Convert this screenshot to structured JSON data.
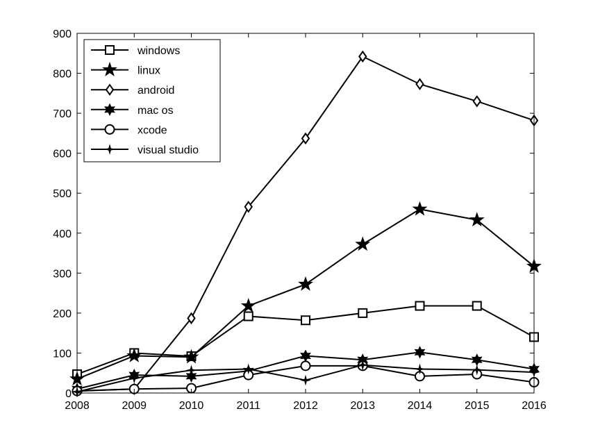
{
  "chart_data": {
    "type": "line",
    "title": "",
    "xlabel": "",
    "ylabel": "",
    "x": [
      2008,
      2009,
      2010,
      2011,
      2012,
      2013,
      2014,
      2015,
      2016
    ],
    "xlim": [
      2008,
      2016
    ],
    "ylim": [
      0,
      900
    ],
    "xticks": [
      "2008",
      "2009",
      "2010",
      "2011",
      "2012",
      "2013",
      "2014",
      "2015",
      "2016"
    ],
    "yticks": [
      "0",
      "100",
      "200",
      "300",
      "400",
      "500",
      "600",
      "700",
      "800",
      "900"
    ],
    "grid": false,
    "legend_position": "top-left",
    "series": [
      {
        "name": "windows",
        "marker": "square",
        "values": [
          47,
          100,
          92,
          192,
          182,
          200,
          218,
          218,
          140
        ]
      },
      {
        "name": "linux",
        "marker": "pentagram",
        "values": [
          35,
          93,
          90,
          218,
          272,
          372,
          460,
          433,
          317
        ]
      },
      {
        "name": "android",
        "marker": "diamond",
        "values": [
          5,
          10,
          187,
          466,
          637,
          842,
          773,
          730,
          682
        ]
      },
      {
        "name": "mac os",
        "marker": "hexagram",
        "values": [
          10,
          45,
          42,
          55,
          93,
          83,
          102,
          83,
          60
        ]
      },
      {
        "name": "xcode",
        "marker": "circle",
        "values": [
          5,
          10,
          12,
          45,
          68,
          68,
          42,
          47,
          27
        ]
      },
      {
        "name": "visual studio",
        "marker": "point",
        "values": [
          3,
          37,
          57,
          60,
          32,
          70,
          60,
          58,
          52
        ]
      }
    ]
  }
}
